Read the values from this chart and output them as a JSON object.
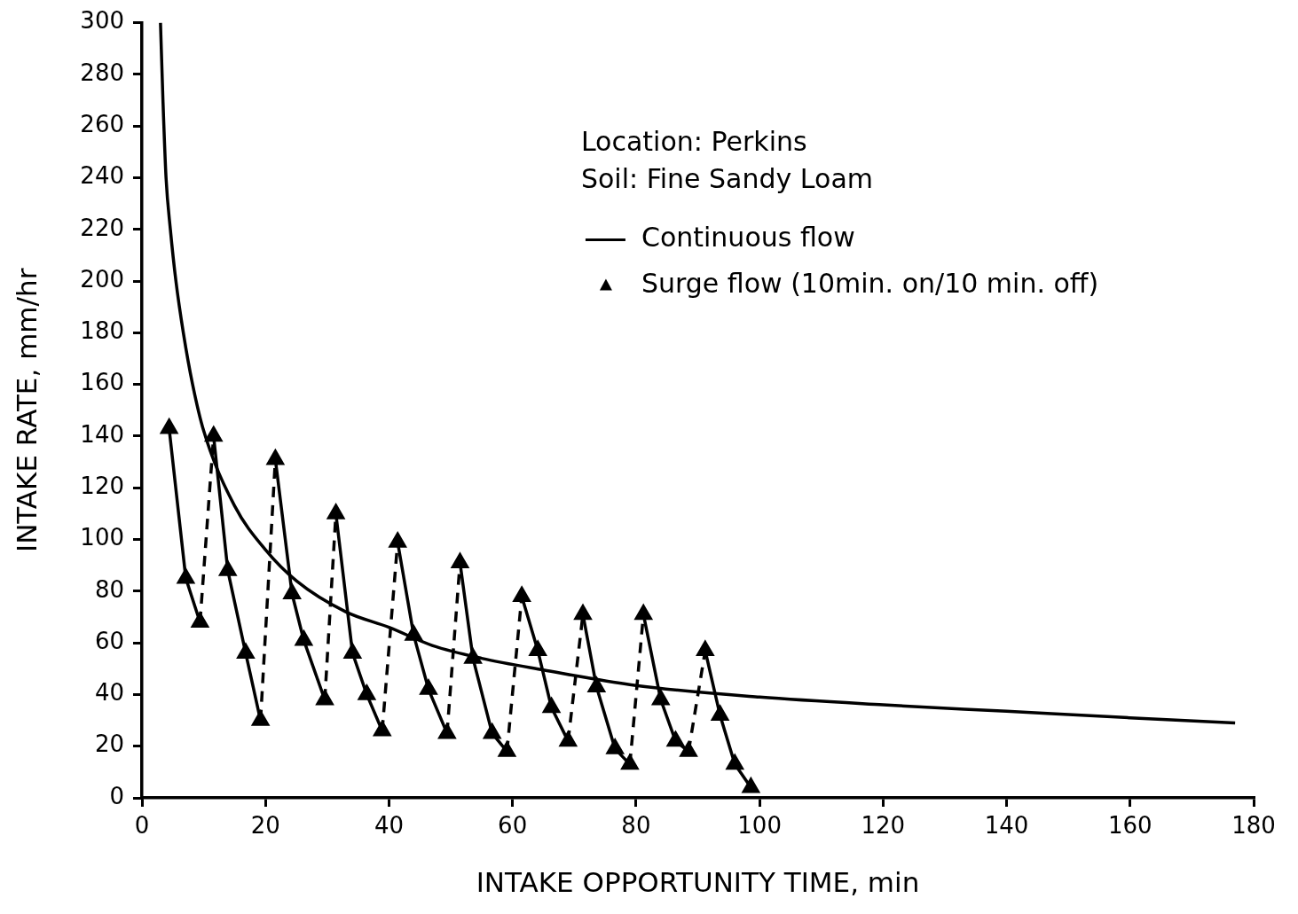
{
  "chart_data": {
    "type": "line",
    "xlabel": "INTAKE OPPORTUNITY TIME, min",
    "ylabel": "INTAKE RATE, mm/hr",
    "xlim": [
      0,
      180
    ],
    "xticks": [
      0,
      20,
      40,
      60,
      80,
      100,
      120,
      140,
      160,
      180
    ],
    "ylim": [
      0,
      300
    ],
    "yticks": [
      0,
      20,
      40,
      60,
      80,
      100,
      120,
      140,
      160,
      180,
      200,
      220,
      240,
      260,
      280,
      300
    ],
    "grid": false,
    "legend": "top right",
    "annotations": [
      "Location: Perkins",
      "Soil: Fine Sandy Loam"
    ],
    "series": [
      {
        "name": "Continuous flow",
        "color": "#000000",
        "marker": "none",
        "x": [
          3.0,
          3.4,
          3.9,
          4.6,
          5.5,
          6.7,
          8.2,
          10,
          15,
          20,
          25,
          33,
          40,
          47,
          55,
          65,
          80,
          100,
          120,
          140,
          160,
          177
        ],
        "values": [
          300,
          270,
          240,
          220,
          200,
          180,
          160,
          142,
          113,
          96,
          84,
          72,
          66,
          59,
          54,
          49.5,
          43.5,
          39,
          36,
          33.5,
          31,
          29
        ]
      },
      {
        "name": "Surge flow (10min. on/10 min. off)",
        "color": "#000000",
        "marker": "triangle",
        "x": [
          4.4,
          7.1,
          9.4,
          11.6,
          13.9,
          16.8,
          19.2,
          21.6,
          24.3,
          26.2,
          29.6,
          31.4,
          34.1,
          36.4,
          38.9,
          41.4,
          44,
          46.4,
          49.4,
          51.5,
          53.6,
          56.7,
          59.1,
          61.5,
          64.1,
          66.3,
          69,
          71.4,
          73.6,
          76.6,
          79,
          81.2,
          84,
          86.4,
          88.5,
          91.2,
          93.6,
          96,
          98.6
        ],
        "values": [
          143,
          85,
          68,
          140,
          88,
          56,
          30,
          131,
          79,
          61,
          38,
          110,
          56,
          40,
          26,
          99,
          63,
          42,
          25,
          91,
          54,
          25,
          18,
          78,
          57,
          35,
          22,
          71,
          43,
          19,
          13,
          71,
          38,
          22,
          18,
          57,
          32,
          13,
          4
        ]
      }
    ]
  }
}
